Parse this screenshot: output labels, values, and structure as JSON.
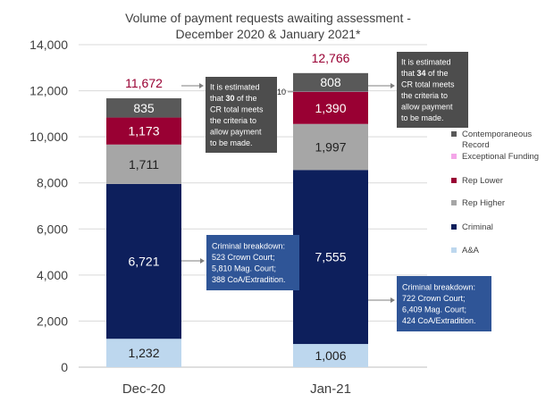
{
  "chart_data": {
    "type": "bar",
    "stacked": true,
    "title": "Volume of payment requests awaiting assessment - December 2020 & January 2021*",
    "title_lines": [
      "Volume of payment requests awaiting assessment -",
      "December 2020 & January 2021*"
    ],
    "categories": [
      "Dec-20",
      "Jan-21"
    ],
    "ylim": [
      0,
      14000
    ],
    "yticks": [
      0,
      2000,
      4000,
      6000,
      8000,
      10000,
      12000,
      14000
    ],
    "ytick_labels": [
      "0",
      "2,000",
      "4,000",
      "6,000",
      "8,000",
      "10,000",
      "12,000",
      "14,000"
    ],
    "grid": true,
    "legend_position": "right",
    "series": [
      {
        "name": "A&A",
        "values": [
          1232,
          1006
        ],
        "labels": [
          "1,232",
          "1,006"
        ],
        "color": "#bdd7ee",
        "label_color": "#1f1f1f"
      },
      {
        "name": "Criminal",
        "values": [
          6721,
          7555
        ],
        "labels": [
          "6,721",
          "7,555"
        ],
        "color": "#0d1f5c",
        "label_color": "#ffffff"
      },
      {
        "name": "Rep Higher",
        "values": [
          1711,
          1997
        ],
        "labels": [
          "1,711",
          "1,997"
        ],
        "color": "#a6a6a6",
        "label_color": "#1f1f1f"
      },
      {
        "name": "Rep Lower",
        "values": [
          1173,
          1390
        ],
        "labels": [
          "1,173",
          "1,390"
        ],
        "color": "#990033",
        "label_color": "#ffffff"
      },
      {
        "name": "Exceptional Funding",
        "values": [
          0,
          10
        ],
        "labels": [
          "",
          "10"
        ],
        "color": "#f4a6e8",
        "label_color": "#1f1f1f"
      },
      {
        "name": "Contemporaneous Record",
        "values": [
          835,
          808
        ],
        "labels": [
          "835",
          "808"
        ],
        "color": "#595959",
        "label_color": "#ffffff"
      }
    ],
    "legend_order": [
      "Contemporaneous Record",
      "Exceptional Funding",
      "Rep Lower",
      "Rep Higher",
      "Criminal",
      "A&A"
    ],
    "totals": {
      "values": [
        11672,
        12766
      ],
      "labels": [
        "11,672",
        "12,766"
      ],
      "color": "#990033"
    },
    "annotations": [
      {
        "id": "cr-note-dec",
        "bar": 0,
        "lines": [
          "It is estimated",
          "that 30 of the",
          "CR total meets",
          "the criteria to",
          "allow payment",
          "to be made."
        ],
        "bold_word": "30",
        "fill": "#4d4d4d",
        "text_color": "#ffffff"
      },
      {
        "id": "cr-note-jan",
        "bar": 1,
        "lines": [
          "It is estimated",
          "that 34 of the",
          "CR total meets",
          "the criteria to",
          "allow payment",
          "to be made."
        ],
        "bold_word": "34",
        "fill": "#4d4d4d",
        "text_color": "#ffffff"
      },
      {
        "id": "crim-note-dec",
        "bar": 0,
        "lines": [
          "Criminal breakdown:",
          "523 Crown Court;",
          "5,810 Mag. Court;",
          "388 CoA/Extradition."
        ],
        "fill": "#2f5597",
        "text_color": "#ffffff"
      },
      {
        "id": "crim-note-jan",
        "bar": 1,
        "lines": [
          "Criminal breakdown:",
          "722 Crown Court;",
          "6,409 Mag. Court;",
          "424 CoA/Extradition."
        ],
        "fill": "#2f5597",
        "text_color": "#ffffff"
      }
    ],
    "text_color": "#404040",
    "grid_color": "#d9d9d9"
  }
}
